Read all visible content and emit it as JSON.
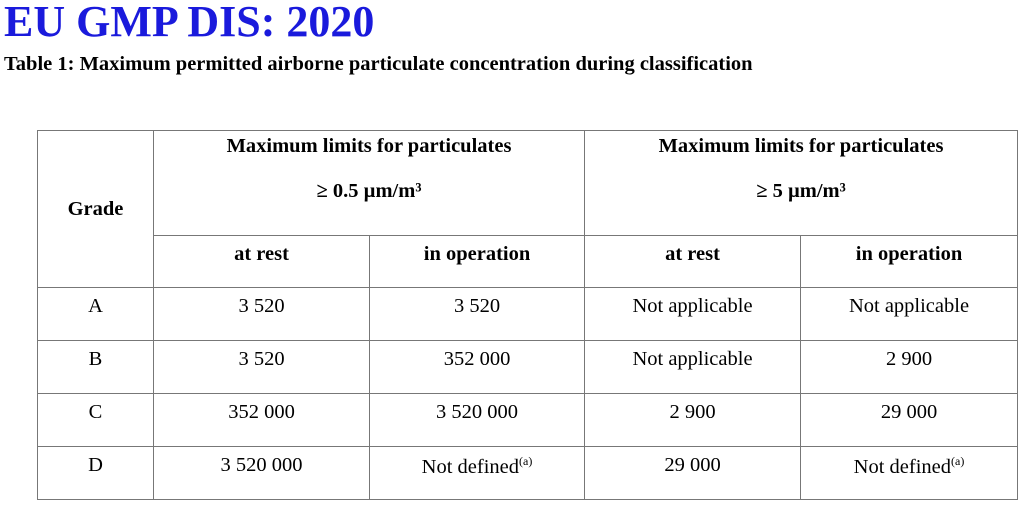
{
  "header": {
    "title": "EU GMP DIS: 2020",
    "subtitle": "Table 1: Maximum permitted airborne particulate concentration during classification"
  },
  "table": {
    "grade_header": "Grade",
    "groups": [
      {
        "label": "Maximum limits for particulates",
        "size": "≥ 0.5 µm/m³"
      },
      {
        "label": "Maximum limits for particulates",
        "size": "≥ 5 µm/m³"
      }
    ],
    "subheaders": [
      "at rest",
      "in operation",
      "at rest",
      "in operation"
    ],
    "rows": [
      [
        "A",
        "3 520",
        "3 520",
        "Not applicable",
        "Not applicable"
      ],
      [
        "B",
        "3 520",
        "352 000",
        "Not applicable",
        "2 900"
      ],
      [
        "C",
        "352 000",
        "3 520 000",
        "2 900",
        "29 000"
      ],
      [
        "D",
        "3 520 000",
        {
          "text": "Not defined",
          "note": "(a)"
        },
        "29 000",
        {
          "text": "Not defined",
          "note": "(a)"
        }
      ]
    ]
  }
}
